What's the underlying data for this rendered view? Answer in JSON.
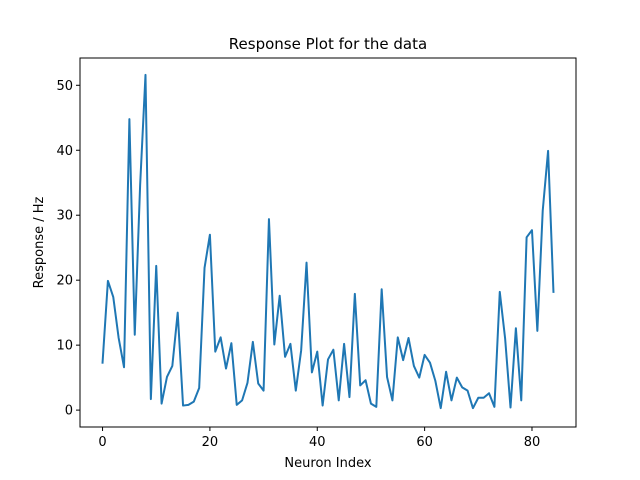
{
  "chart_data": {
    "type": "line",
    "title": "Response Plot for the data",
    "xlabel": "Neuron Index",
    "ylabel": "Response / Hz",
    "xlim": [
      -4.2,
      88.2
    ],
    "ylim": [
      -2.6,
      54.2
    ],
    "xticks": [
      0,
      20,
      40,
      60,
      80
    ],
    "yticks": [
      0,
      10,
      20,
      30,
      40,
      50
    ],
    "grid": false,
    "series": [
      {
        "name": "response",
        "color": "#1f77b4",
        "x": [
          0,
          1,
          2,
          3,
          4,
          5,
          6,
          7,
          8,
          9,
          10,
          11,
          12,
          13,
          14,
          15,
          16,
          17,
          18,
          19,
          20,
          21,
          22,
          23,
          24,
          25,
          26,
          27,
          28,
          29,
          30,
          31,
          32,
          33,
          34,
          35,
          36,
          37,
          38,
          39,
          40,
          41,
          42,
          43,
          44,
          45,
          46,
          47,
          48,
          49,
          50,
          51,
          52,
          53,
          54,
          55,
          56,
          57,
          58,
          59,
          60,
          61,
          62,
          63,
          64,
          65,
          66,
          67,
          68,
          69,
          70,
          71,
          72,
          73,
          74,
          75,
          76,
          77,
          78,
          79,
          80,
          81,
          82,
          83,
          84
        ],
        "values": [
          7.3,
          19.9,
          17.4,
          11.1,
          6.6,
          44.8,
          11.6,
          34.6,
          51.6,
          1.7,
          22.2,
          1.0,
          5.1,
          6.8,
          15.0,
          0.7,
          0.8,
          1.3,
          3.4,
          21.9,
          27.0,
          9.0,
          11.2,
          6.4,
          10.3,
          0.8,
          1.5,
          4.2,
          10.5,
          4.1,
          3.0,
          29.4,
          10.1,
          17.6,
          8.2,
          10.2,
          3.0,
          9.2,
          22.7,
          5.8,
          9.0,
          0.7,
          7.8,
          9.3,
          1.5,
          10.2,
          2.0,
          17.9,
          3.8,
          4.6,
          1.0,
          0.5,
          18.6,
          5.1,
          1.5,
          11.2,
          7.7,
          11.1,
          6.8,
          5.0,
          8.5,
          7.3,
          4.5,
          0.3,
          5.9,
          1.5,
          5.0,
          3.5,
          3.0,
          0.3,
          1.9,
          1.9,
          2.6,
          0.5,
          18.2,
          11.0,
          0.4,
          12.6,
          1.5,
          26.6,
          27.7,
          12.2,
          30.7,
          39.9,
          18.2
        ]
      }
    ]
  }
}
